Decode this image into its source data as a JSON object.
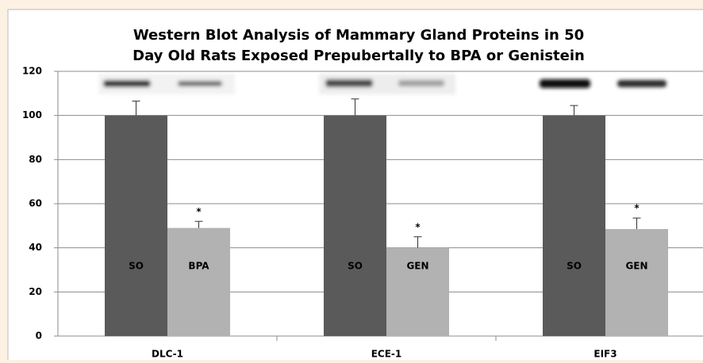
{
  "chart_data": {
    "type": "bar",
    "title": [
      "Western Blot Analysis of Mammary Gland Proteins in 50",
      "Day Old Rats Exposed Prepubertally to BPA or Genistein"
    ],
    "categories": [
      "DLC-1",
      "ECE-1",
      "EIF3"
    ],
    "series": [
      {
        "color": "#5a5a5a",
        "values": [
          100,
          100,
          100
        ],
        "errors": [
          6.5,
          7.5,
          4.5
        ],
        "labels": [
          "SO",
          "SO",
          "SO"
        ]
      },
      {
        "color": "#b2b2b2",
        "values": [
          49,
          40,
          48.5
        ],
        "errors": [
          3,
          5,
          5
        ],
        "labels": [
          "BPA",
          "GEN",
          "GEN"
        ],
        "annotations": [
          "*",
          "*",
          "*"
        ]
      }
    ],
    "ylim": [
      0,
      120
    ],
    "yticks": [
      0,
      20,
      40,
      60,
      80,
      100,
      120
    ],
    "grid": true
  }
}
